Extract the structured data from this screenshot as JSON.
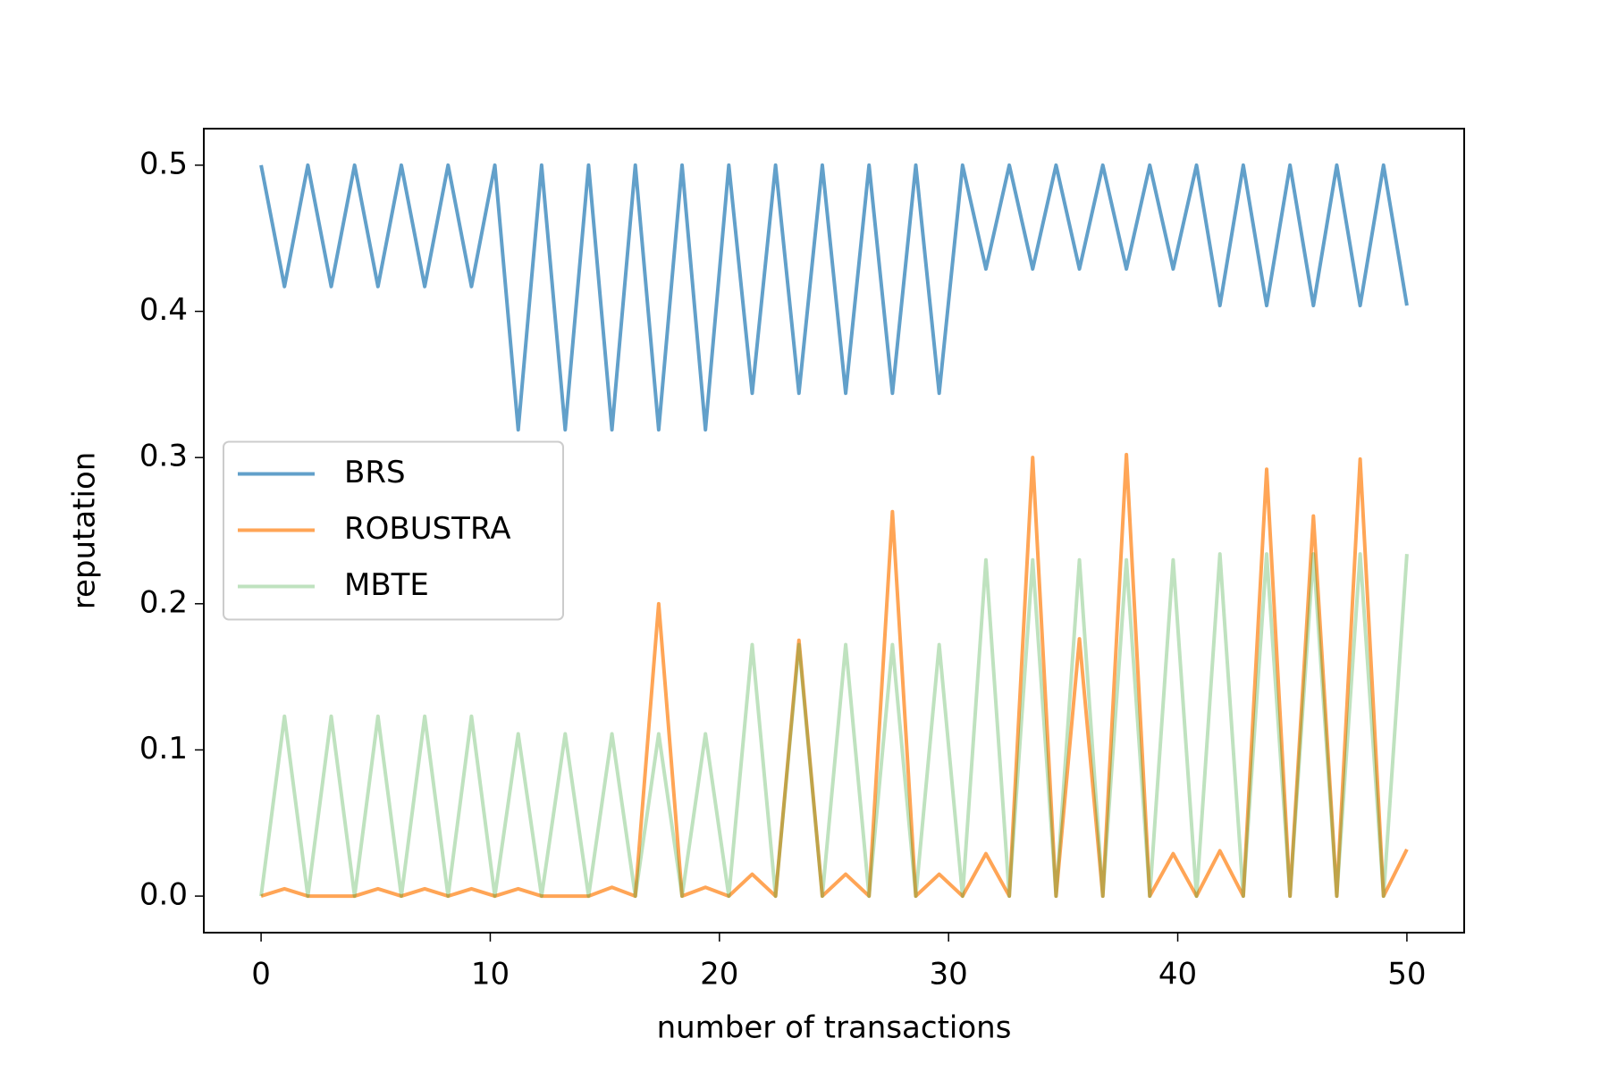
{
  "chart_data": {
    "type": "line",
    "xlabel": "number of transactions",
    "ylabel": "reputation",
    "x": [
      0,
      1.02,
      2.04,
      3.06,
      4.08,
      5.1,
      6.12,
      7.14,
      8.16,
      9.18,
      10.2,
      11.22,
      12.24,
      13.27,
      14.29,
      15.31,
      16.33,
      17.35,
      18.37,
      19.39,
      20.41,
      21.43,
      22.45,
      23.47,
      24.49,
      25.51,
      26.53,
      27.55,
      28.57,
      29.59,
      30.61,
      31.63,
      32.65,
      33.67,
      34.69,
      35.71,
      36.73,
      37.76,
      38.78,
      39.8,
      40.82,
      41.84,
      42.86,
      43.88,
      44.9,
      45.92,
      46.94,
      47.96,
      48.98,
      50
    ],
    "series": [
      {
        "name": "BRS",
        "color": "#1f77b4",
        "opacity": 0.7,
        "values": [
          0.5,
          0.417,
          0.5,
          0.417,
          0.5,
          0.417,
          0.5,
          0.417,
          0.5,
          0.417,
          0.5,
          0.319,
          0.5,
          0.319,
          0.5,
          0.319,
          0.5,
          0.319,
          0.5,
          0.319,
          0.5,
          0.344,
          0.5,
          0.344,
          0.5,
          0.344,
          0.5,
          0.344,
          0.5,
          0.344,
          0.5,
          0.429,
          0.5,
          0.429,
          0.5,
          0.429,
          0.5,
          0.429,
          0.5,
          0.429,
          0.5,
          0.404,
          0.5,
          0.404,
          0.5,
          0.404,
          0.5,
          0.404,
          0.5,
          0.404
        ]
      },
      {
        "name": "ROBUSTRA",
        "color": "#ff7f0e",
        "opacity": 0.7,
        "values": [
          0,
          0.005,
          0,
          0,
          0,
          0.005,
          0,
          0.005,
          0,
          0.005,
          0,
          0.005,
          0,
          0,
          0,
          0.006,
          0,
          0.2,
          0,
          0.006,
          0,
          0.015,
          0,
          0.175,
          0,
          0.015,
          0,
          0.263,
          0,
          0.015,
          0,
          0.029,
          0,
          0.3,
          0,
          0.176,
          0,
          0.302,
          0,
          0.029,
          0,
          0.031,
          0,
          0.292,
          0,
          0.26,
          0,
          0.299,
          0,
          0.032
        ]
      },
      {
        "name": "MBTE",
        "color": "#2ca02c",
        "opacity": 0.3,
        "values": [
          0,
          0.123,
          0,
          0.123,
          0,
          0.123,
          0,
          0.123,
          0,
          0.123,
          0,
          0.111,
          0,
          0.111,
          0,
          0.111,
          0,
          0.111,
          0,
          0.111,
          0,
          0.172,
          0,
          0.172,
          0,
          0.172,
          0,
          0.172,
          0,
          0.172,
          0,
          0.23,
          0,
          0.23,
          0,
          0.23,
          0,
          0.23,
          0,
          0.23,
          0,
          0.234,
          0,
          0.234,
          0,
          0.234,
          0,
          0.234,
          0,
          0.234
        ]
      }
    ],
    "xlim": [
      -2.5,
      52.5
    ],
    "xticks": [
      0,
      10,
      20,
      30,
      40,
      50
    ],
    "ylim": [
      -0.025,
      0.525
    ],
    "yticks": [
      {
        "value": 0,
        "label": "0.0"
      },
      0.1,
      0.2,
      0.3,
      0.4,
      0.5
    ],
    "grid": false,
    "legend": "center left"
  }
}
